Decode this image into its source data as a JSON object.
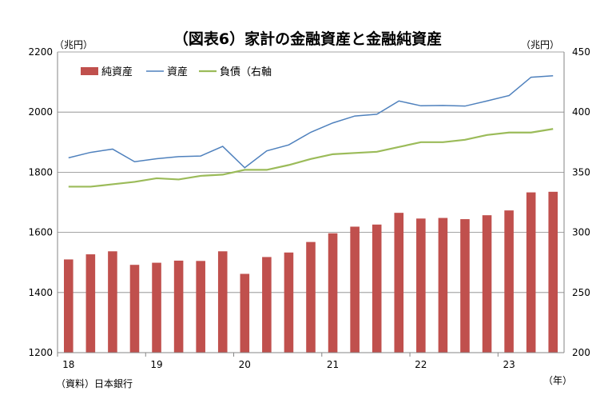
{
  "chart_data": {
    "type": "bar+line",
    "title": "（図表6）家計の金融資産と金融純資産",
    "left_unit": "（兆円）",
    "right_unit": "（兆円）",
    "x_unit": "（年）",
    "source": "（資料）日本銀行",
    "y_left_lim": [
      1200,
      2200
    ],
    "y_left_ticks": [
      "1200",
      "1400",
      "1600",
      "1800",
      "2000",
      "2200"
    ],
    "y_right_lim": [
      200,
      450
    ],
    "y_right_ticks": [
      "200",
      "250",
      "300",
      "350",
      "400",
      "450"
    ],
    "year_labels": [
      "18",
      "19",
      "20",
      "21",
      "22",
      "23"
    ],
    "legend_position": "top-left",
    "grid": "horizontal",
    "colors": {
      "bar": "#c0504d",
      "assets": "#4f81bd",
      "liabilities": "#9bbb59"
    },
    "series": [
      {
        "name": "純資産",
        "kind": "bar",
        "axis": "left",
        "values": [
          1510,
          1527,
          1537,
          1492,
          1499,
          1506,
          1505,
          1537,
          1462,
          1518,
          1533,
          1568,
          1597,
          1619,
          1626,
          1665,
          1646,
          1648,
          1644,
          1657,
          1673,
          1733,
          1735
        ]
      },
      {
        "name": "資産",
        "kind": "line",
        "axis": "left",
        "values": [
          1848,
          1866,
          1877,
          1835,
          1845,
          1852,
          1854,
          1886,
          1815,
          1871,
          1891,
          1933,
          1964,
          1987,
          1993,
          2037,
          2021,
          2022,
          2020,
          2037,
          2055,
          2116,
          2121
        ]
      },
      {
        "name": "負債（右軸",
        "kind": "line",
        "axis": "right",
        "values": [
          338,
          338,
          340,
          342,
          345,
          344,
          347,
          348,
          352,
          352,
          356,
          361,
          365,
          366,
          367,
          371,
          375,
          375,
          377,
          381,
          383,
          383,
          386
        ]
      }
    ]
  }
}
